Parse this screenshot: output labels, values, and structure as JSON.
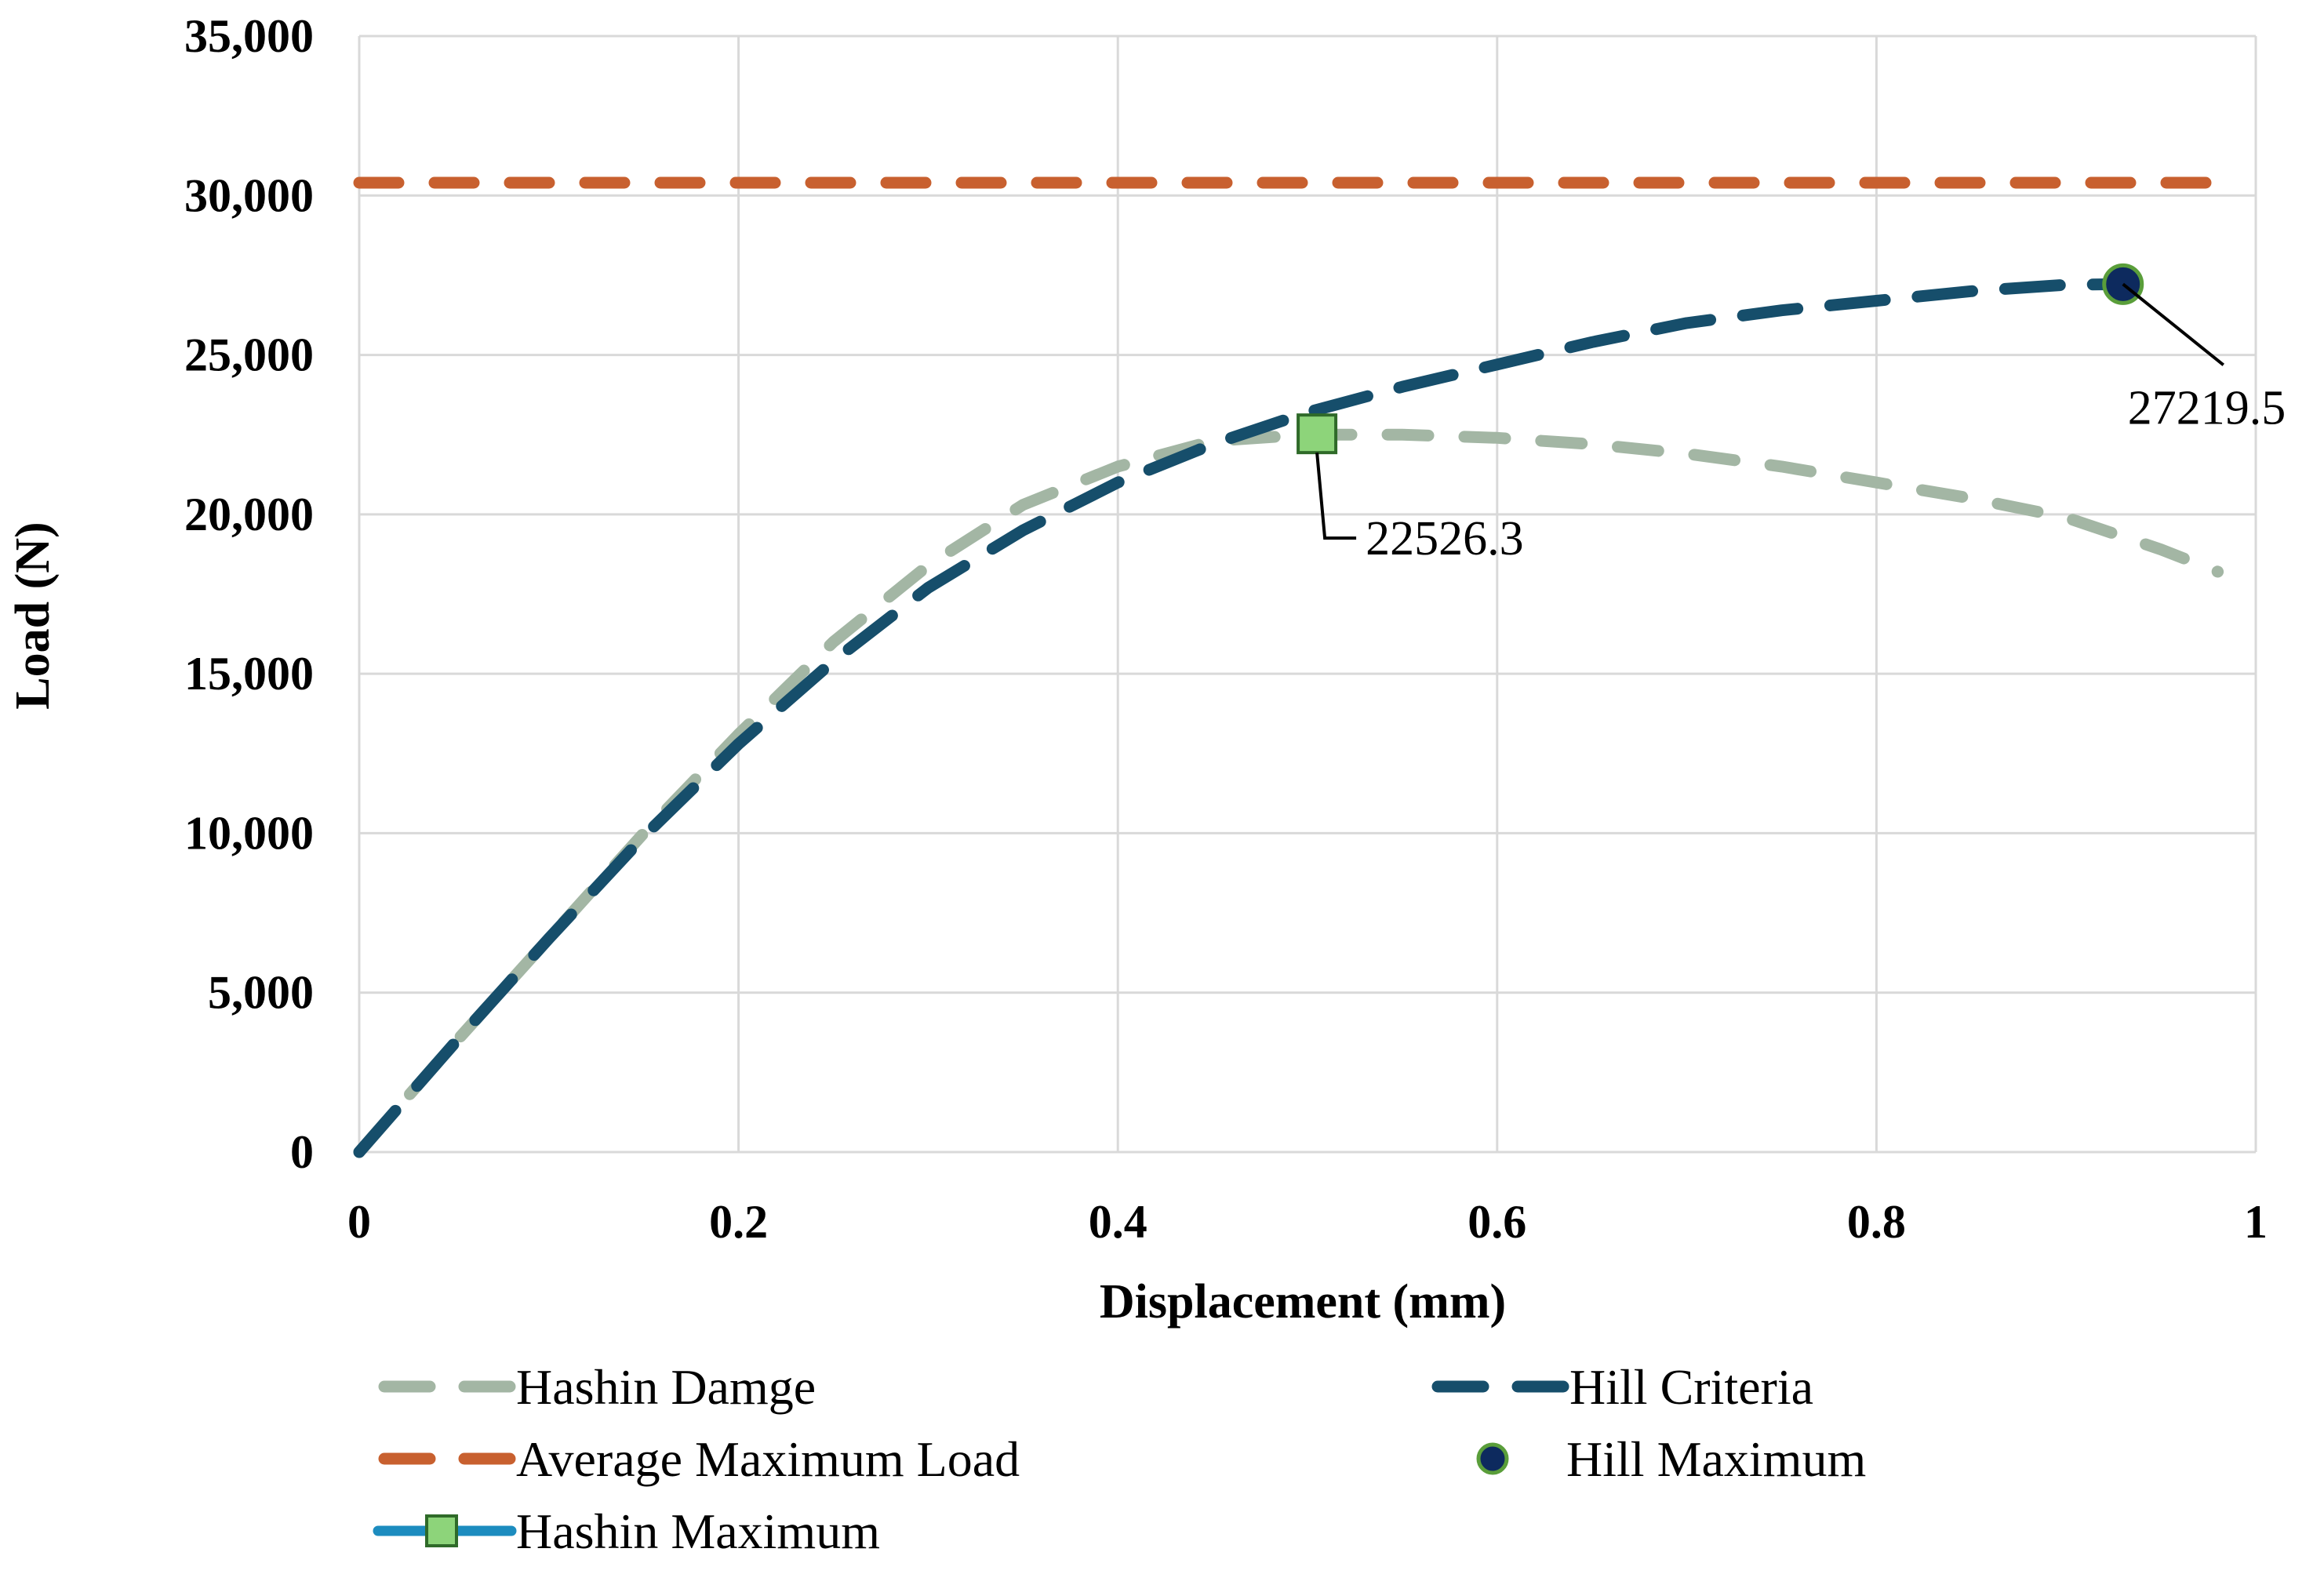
{
  "chart_data": {
    "type": "line",
    "title": "",
    "xlabel": "Displacement (mm)",
    "ylabel": "Load (N)",
    "xlim": [
      0,
      1
    ],
    "ylim": [
      0,
      35000
    ],
    "grid": true,
    "legend_position": "bottom",
    "x_ticks": [
      "0",
      "0.2",
      "0.4",
      "0.6",
      "0.8",
      "1"
    ],
    "y_ticks": [
      "0",
      "5,000",
      "10,000",
      "15,000",
      "20,000",
      "25,000",
      "30,000",
      "35,000"
    ],
    "series": [
      {
        "name": "Hashin Damge",
        "style": "dashed",
        "color": "#A3B6A4",
        "x": [
          0,
          0.05,
          0.1,
          0.15,
          0.2,
          0.25,
          0.3,
          0.35,
          0.4,
          0.45,
          0.5,
          0.55,
          0.6,
          0.65,
          0.7,
          0.75,
          0.8,
          0.85,
          0.9,
          0.95,
          0.98
        ],
        "y": [
          0,
          3400,
          6700,
          10000,
          13100,
          16000,
          18400,
          20300,
          21500,
          22300,
          22500,
          22500,
          22400,
          22200,
          21900,
          21500,
          21000,
          20500,
          19900,
          18900,
          18200
        ]
      },
      {
        "name": "Average Maximum Load",
        "style": "dashed",
        "color": "#C8602F",
        "x": [
          0,
          0.98
        ],
        "y": [
          30400,
          30400
        ]
      },
      {
        "name": "Hashin Maximum",
        "style": "marker-square",
        "color": "#8DD47A",
        "x": [
          0.505
        ],
        "y": [
          22526.3
        ],
        "label": "22526.3"
      },
      {
        "name": "Hill Criteria",
        "style": "dashed",
        "color": "#164E6B",
        "x": [
          0,
          0.05,
          0.1,
          0.15,
          0.2,
          0.25,
          0.3,
          0.35,
          0.4,
          0.45,
          0.5,
          0.55,
          0.6,
          0.65,
          0.7,
          0.75,
          0.8,
          0.85,
          0.9,
          0.93
        ],
        "y": [
          0,
          3400,
          6700,
          9900,
          12800,
          15400,
          17700,
          19500,
          21000,
          22200,
          23200,
          24000,
          24700,
          25400,
          26000,
          26400,
          26700,
          27000,
          27200,
          27219.5
        ]
      },
      {
        "name": "Hill Maximum",
        "style": "marker-circle",
        "color": "#0D2A5E",
        "x": [
          0.93
        ],
        "y": [
          27219.5
        ],
        "label": "27219.5"
      }
    ]
  }
}
